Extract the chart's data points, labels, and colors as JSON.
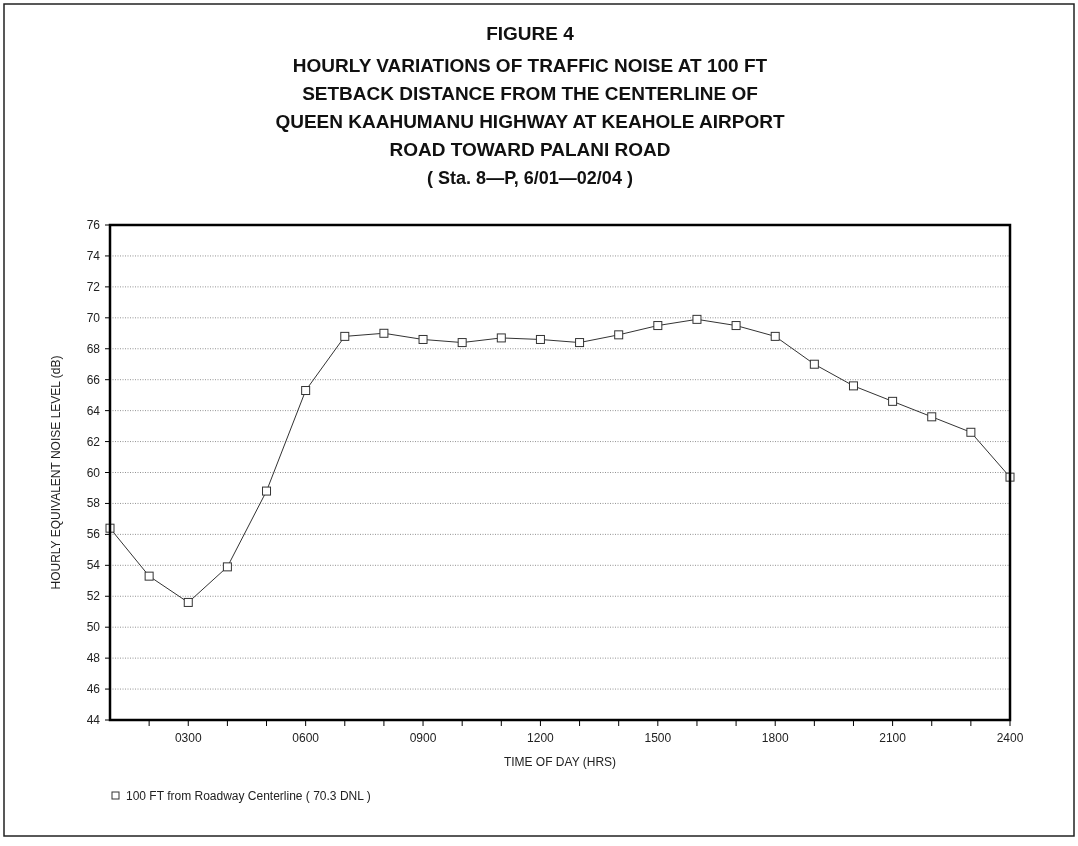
{
  "chart_data": {
    "type": "line",
    "title": "FIGURE 4",
    "subtitle": "HOURLY VARIATIONS OF TRAFFIC NOISE AT 100 FT SETBACK DISTANCE FROM THE CENTERLINE OF QUEEN KAAHUMANU HIGHWAY AT KEAHOLE AIRPORT ROAD TOWARD PALANI ROAD",
    "annotations": [
      "( Sta. 8—P, 6/01—02/04 )"
    ],
    "xlabel": "TIME OF DAY (HRS)",
    "ylabel": "HOURLY EQUIVALENT NOISE LEVEL (dB)",
    "x": [
      100,
      200,
      300,
      400,
      500,
      600,
      700,
      800,
      900,
      1000,
      1100,
      1200,
      1300,
      1400,
      1500,
      1600,
      1700,
      1800,
      1900,
      2000,
      2100,
      2200,
      2300,
      2400
    ],
    "series": [
      {
        "name": "100 FT from Roadway Centerline ( 70.3 DNL )",
        "color": "#333333",
        "values": [
          56.4,
          53.3,
          51.6,
          53.9,
          58.8,
          65.3,
          68.8,
          69.0,
          68.6,
          68.4,
          68.7,
          68.6,
          68.4,
          68.9,
          69.5,
          69.9,
          69.5,
          68.8,
          67.0,
          65.6,
          64.6,
          63.6,
          62.6,
          59.7
        ]
      }
    ],
    "xlim": [
      100,
      2400
    ],
    "xticks": [
      {
        "value": 200,
        "label": null
      },
      {
        "value": 300,
        "label": "0300"
      },
      {
        "value": 400,
        "label": null
      },
      {
        "value": 500,
        "label": null
      },
      {
        "value": 600,
        "label": "0600"
      },
      {
        "value": 700,
        "label": null
      },
      {
        "value": 800,
        "label": null
      },
      {
        "value": 900,
        "label": "0900"
      },
      {
        "value": 1000,
        "label": null
      },
      {
        "value": 1100,
        "label": null
      },
      {
        "value": 1200,
        "label": "1200"
      },
      {
        "value": 1300,
        "label": null
      },
      {
        "value": 1400,
        "label": null
      },
      {
        "value": 1500,
        "label": "1500"
      },
      {
        "value": 1600,
        "label": null
      },
      {
        "value": 1700,
        "label": null
      },
      {
        "value": 1800,
        "label": "1800"
      },
      {
        "value": 1900,
        "label": null
      },
      {
        "value": 2000,
        "label": null
      },
      {
        "value": 2100,
        "label": "2100"
      },
      {
        "value": 2200,
        "label": null
      },
      {
        "value": 2300,
        "label": null
      },
      {
        "value": 2400,
        "label": "2400"
      }
    ],
    "ylim": [
      44,
      76
    ],
    "yticks": [
      44,
      46,
      48,
      50,
      52,
      54,
      56,
      58,
      60,
      62,
      64,
      66,
      68,
      70,
      72,
      74,
      76
    ],
    "grid": "y",
    "legend": "bottom",
    "marker": "square",
    "line_style": "solid"
  }
}
